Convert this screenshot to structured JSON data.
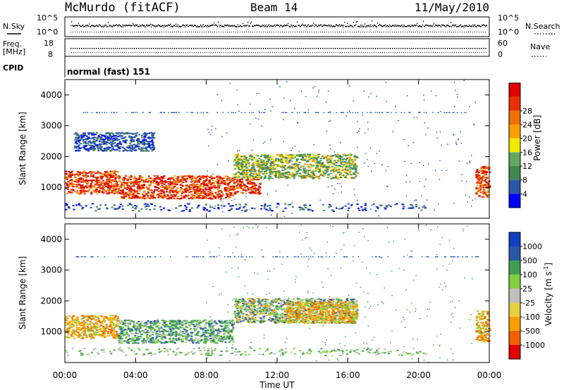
{
  "header": {
    "station": "McMurdo (fitACF)",
    "beam": "Beam 14",
    "date": "11/May/2010"
  },
  "strip_panels": {
    "nsky": {
      "left_label": "N.Sky",
      "left_ticks": [
        "10^5",
        "10^0"
      ],
      "right_label": "N.Search",
      "right_ticks": [
        "10^5",
        "10^0"
      ]
    },
    "freq": {
      "left_label_top": "Freq.",
      "left_label_bottom": "[MHz]",
      "left_ticks": [
        "18",
        "8"
      ],
      "right_label": "Nave",
      "right_ticks": [
        "60",
        "0"
      ]
    },
    "cpid": {
      "label": "CPID",
      "value": "normal (fast) 151"
    }
  },
  "colors": {
    "power_scale": [
      "#0000ff",
      "#2a58a8",
      "#3f8850",
      "#60a860",
      "#f0e800",
      "#f8a000",
      "#f07000",
      "#e83000",
      "#e00000"
    ],
    "velocity_scale": [
      "#e00000",
      "#f06000",
      "#f8a000",
      "#e8d040",
      "#c0c0c0",
      "#80d040",
      "#40a050",
      "#2a58a8",
      "#1040c0"
    ]
  },
  "chart_data": [
    {
      "type": "heatmap",
      "name": "power",
      "ylabel": "Slant Range [km]",
      "yticks": [
        "1000",
        "2000",
        "3000",
        "4000"
      ],
      "ylim": [
        0,
        4500
      ],
      "xlim": [
        "00:00",
        "24:00"
      ],
      "colorbar": {
        "label": "Power [dB]",
        "ticks": [
          "4",
          "8",
          "12",
          "16",
          "20",
          "24",
          "28"
        ]
      },
      "echo_bands": [
        {
          "t_start": 0.0,
          "t_end": 3.0,
          "r_low": 800,
          "r_high": 1550,
          "level": "high"
        },
        {
          "t_start": 3.0,
          "t_end": 9.5,
          "r_low": 650,
          "r_high": 1400,
          "level": "high"
        },
        {
          "t_start": 9.5,
          "t_end": 11.0,
          "r_low": 800,
          "r_high": 1300,
          "level": "high"
        },
        {
          "t_start": 9.5,
          "t_end": 16.5,
          "r_low": 1300,
          "r_high": 2100,
          "level": "medium"
        },
        {
          "t_start": 0.5,
          "t_end": 5.0,
          "r_low": 2200,
          "r_high": 2800,
          "level": "low"
        },
        {
          "t_start": 23.2,
          "t_end": 24.0,
          "r_low": 700,
          "r_high": 1700,
          "level": "high"
        }
      ]
    },
    {
      "type": "heatmap",
      "name": "velocity",
      "ylabel": "Slant Range [km]",
      "yticks": [
        "1000",
        "2000",
        "3000",
        "4000"
      ],
      "ylim": [
        0,
        4500
      ],
      "xticks": [
        "00:00",
        "04:00",
        "08:00",
        "12:00",
        "16:00",
        "20:00",
        "00:00"
      ],
      "xlabel": "Time UT",
      "colorbar": {
        "label": "Velocity [m s^-1]",
        "ticks": [
          "1000",
          "500",
          "100",
          "25",
          "-25",
          "-100",
          "-500",
          "-1000"
        ]
      },
      "echo_bands": [
        {
          "t_start": 0.0,
          "t_end": 3.0,
          "r_low": 800,
          "r_high": 1550,
          "level": "negative"
        },
        {
          "t_start": 3.0,
          "t_end": 9.5,
          "r_low": 650,
          "r_high": 1400,
          "level": "positive"
        },
        {
          "t_start": 9.5,
          "t_end": 16.5,
          "r_low": 1300,
          "r_high": 2100,
          "level": "mixed"
        },
        {
          "t_start": 12.5,
          "t_end": 16.5,
          "r_low": 1300,
          "r_high": 2000,
          "level": "negative"
        },
        {
          "t_start": 23.2,
          "t_end": 24.0,
          "r_low": 700,
          "r_high": 1700,
          "level": "negative"
        }
      ]
    }
  ]
}
